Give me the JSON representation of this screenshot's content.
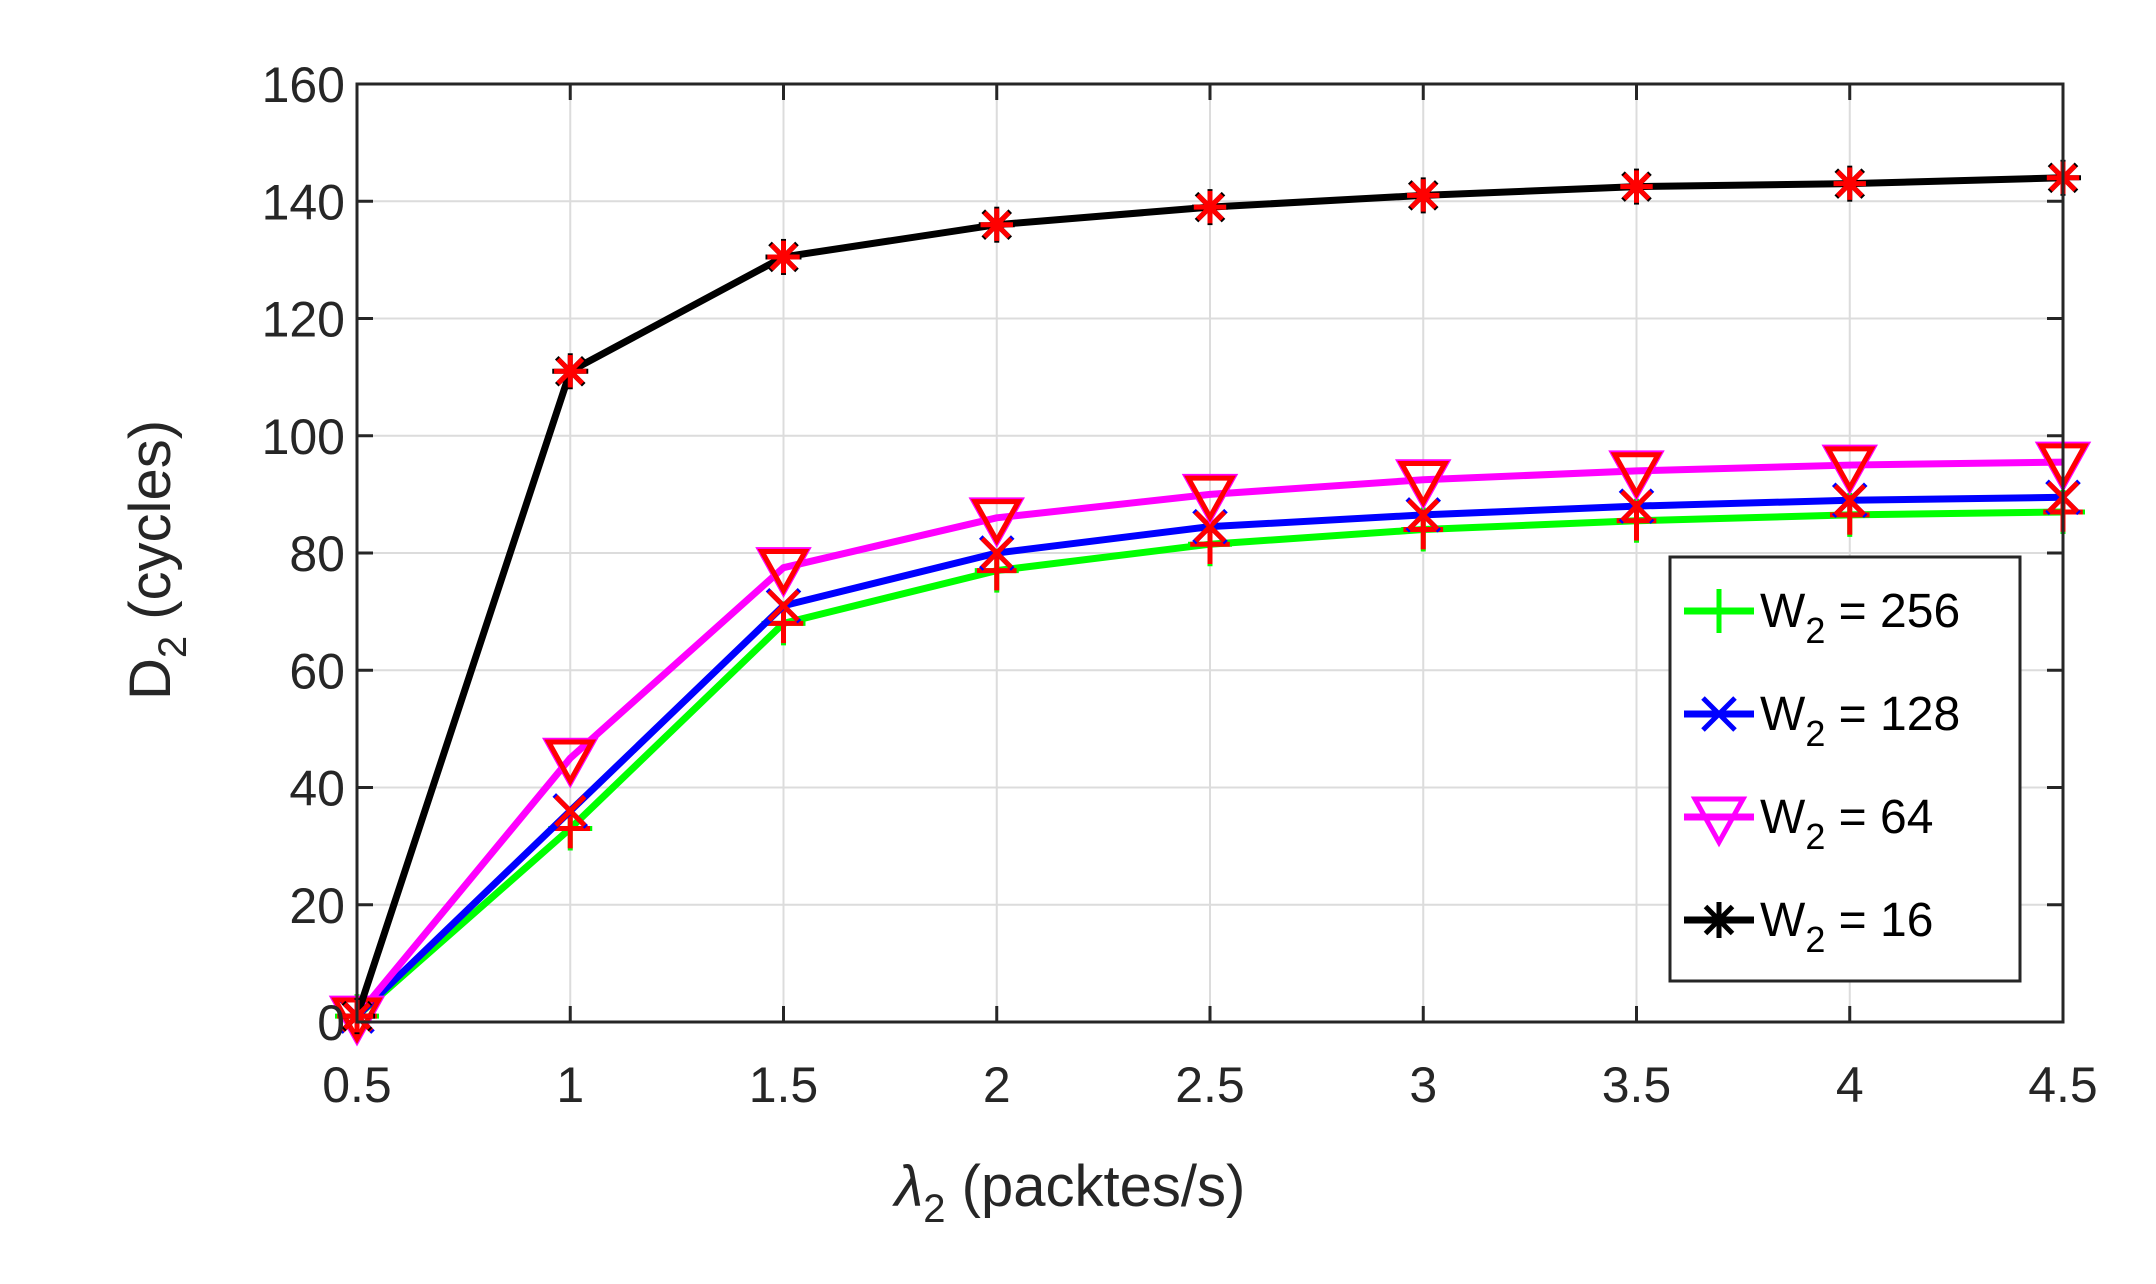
{
  "chart_data": {
    "type": "line",
    "title": "",
    "xlabel": {
      "symbol": "λ",
      "sub": "2",
      "rest": " (packtes/s)"
    },
    "ylabel": {
      "main": "D",
      "sub": "2",
      "rest": " (cycles)"
    },
    "x": [
      0.5,
      1,
      1.5,
      2,
      2.5,
      3,
      3.5,
      4,
      4.5
    ],
    "xlim": [
      0.5,
      4.5
    ],
    "ylim": [
      0,
      160
    ],
    "xticks": [
      "0.5",
      "1",
      "1.5",
      "2",
      "2.5",
      "3",
      "3.5",
      "4",
      "4.5"
    ],
    "yticks": [
      "0",
      "20",
      "40",
      "60",
      "80",
      "100",
      "120",
      "140",
      "160"
    ],
    "grid": true,
    "legend_position": "right",
    "series": [
      {
        "name": "W2 = 256",
        "legend": {
          "w": "W",
          "sub": "2",
          "rest": " = 256"
        },
        "color": "#00ff00",
        "marker": "plus",
        "values": [
          1,
          33,
          68,
          77,
          81.5,
          84,
          85.5,
          86.5,
          87
        ]
      },
      {
        "name": "W2 = 128",
        "legend": {
          "w": "W",
          "sub": "2",
          "rest": " = 128"
        },
        "color": "#0000ff",
        "marker": "x",
        "values": [
          1,
          36,
          71,
          80,
          84.5,
          86.5,
          88,
          89,
          89.5
        ]
      },
      {
        "name": "W2 = 64",
        "legend": {
          "w": "W",
          "sub": "2",
          "rest": " = 64"
        },
        "color": "#ff00ff",
        "marker": "triangle-down",
        "values": [
          1,
          45,
          77.5,
          86,
          90,
          92.5,
          94,
          95,
          95.5
        ]
      },
      {
        "name": "W2 = 16",
        "legend": {
          "w": "W",
          "sub": "2",
          "rest": " = 16"
        },
        "color": "#000000",
        "marker": "asterisk",
        "values": [
          1,
          111,
          130.5,
          136,
          139,
          141,
          142.5,
          143,
          144
        ]
      }
    ],
    "overlay_marker_color": "#ff0000"
  }
}
